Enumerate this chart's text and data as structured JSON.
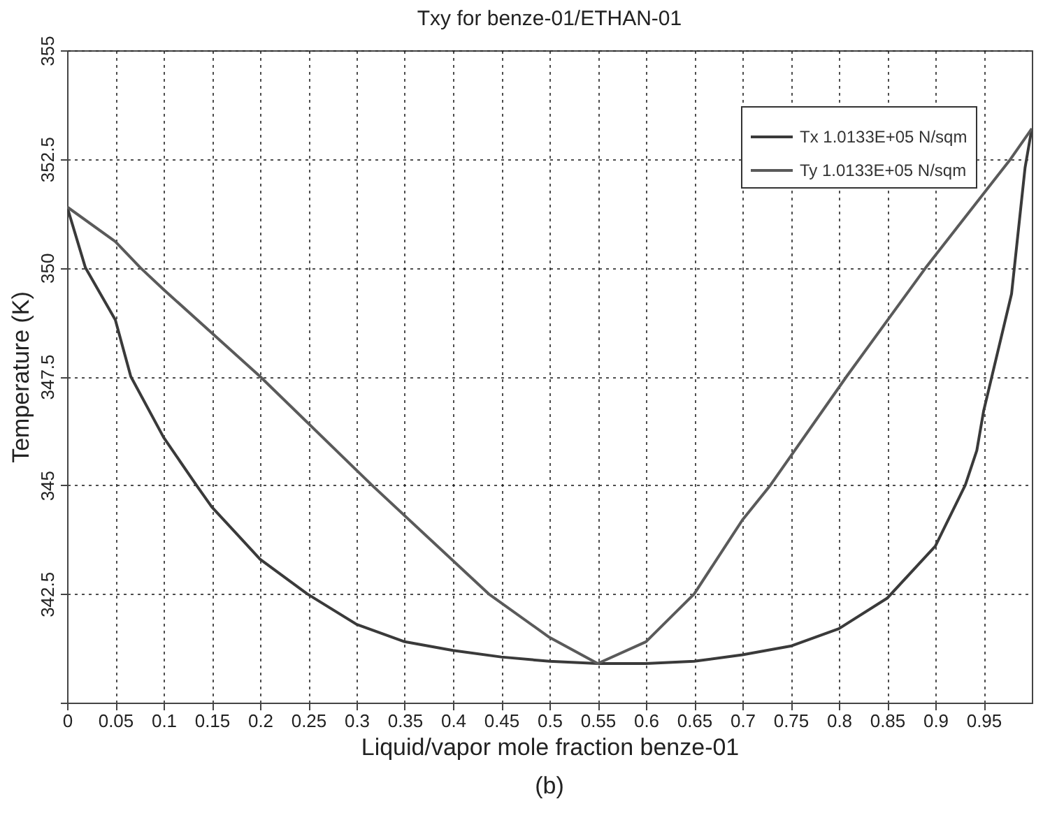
{
  "chart_data": {
    "type": "line",
    "title": "Txy for benze-01/ETHAN-01",
    "xlabel": "Liquid/vapor mole fraction benze-01",
    "ylabel": "Temperature (K)",
    "annotations": [
      "(b)"
    ],
    "xlim": [
      0,
      1
    ],
    "xticks": [
      0,
      0.05,
      0.1,
      0.15,
      0.2,
      0.25,
      0.3,
      0.35,
      0.4,
      0.45,
      0.5,
      0.55,
      0.6,
      0.65,
      0.7,
      0.75,
      0.8,
      0.85,
      0.9,
      0.95
    ],
    "ylim": [
      340,
      355
    ],
    "yticks": [
      {
        "value": 340,
        "label": null
      },
      342.5,
      345,
      347.5,
      350,
      352.5,
      355
    ],
    "grid": true,
    "legend": "top right",
    "line_style": "solid",
    "marker": "none",
    "series": [
      {
        "name": "Tx 1.0133E+05 N/sqm",
        "color": "#3a3a3a",
        "x": [
          0,
          0.019,
          0.05,
          0.066,
          0.1,
          0.134,
          0.15,
          0.2,
          0.249,
          0.3,
          0.35,
          0.4,
          0.45,
          0.5,
          0.55,
          0.6,
          0.65,
          0.7,
          0.75,
          0.8,
          0.85,
          0.9,
          0.931,
          0.943,
          0.95,
          0.979,
          0.993,
          1
        ],
        "values": [
          351.4,
          350,
          348.8,
          347.5,
          346.1,
          345,
          344.5,
          343.3,
          342.5,
          341.8,
          341.4,
          341.2,
          341.05,
          340.95,
          340.9,
          340.9,
          340.95,
          341.1,
          341.3,
          341.7,
          342.4,
          343.6,
          345,
          345.8,
          346.7,
          349.4,
          352.3,
          353.2
        ]
      },
      {
        "name": "Ty 1.0133E+05 N/sqm",
        "color": "#5a5a5a",
        "x": [
          0,
          0.05,
          0.076,
          0.1,
          0.2,
          0.316,
          0.437,
          0.5,
          0.55,
          0.6,
          0.65,
          0.7,
          0.729,
          0.808,
          0.89,
          0.978,
          1
        ],
        "values": [
          351.4,
          350.6,
          350,
          349.5,
          347.5,
          345,
          342.5,
          341.5,
          340.9,
          341.4,
          342.5,
          344.2,
          345,
          347.5,
          350,
          352.5,
          353.2
        ]
      }
    ]
  }
}
